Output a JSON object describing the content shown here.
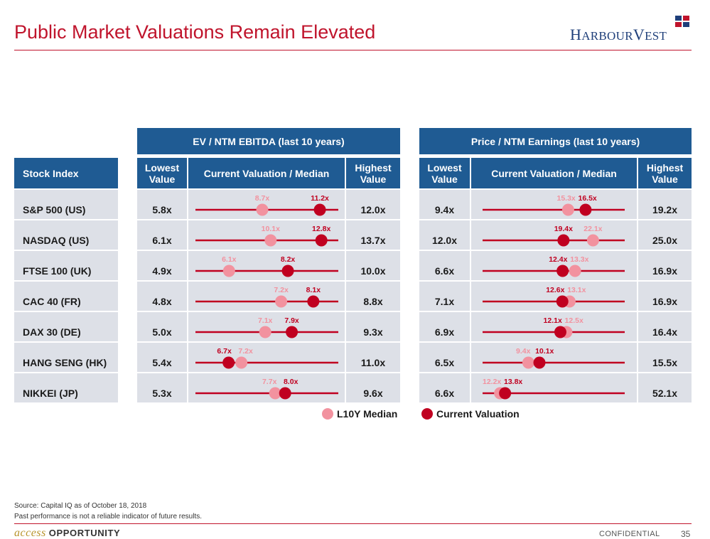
{
  "title": "Public Market Valuations Remain Elevated",
  "logo": {
    "text_big": "H",
    "text_small": "ARBOUR",
    "text_big2": "V",
    "text_small2": "EST"
  },
  "colors": {
    "header": "#1f5b93",
    "row_bg": "#dde0e7",
    "accent": "#c0142c",
    "median": "#f2929f",
    "current": "#c00020"
  },
  "groups": {
    "ev": "EV / NTM EBITDA (last 10 years)",
    "pe": "Price / NTM Earnings (last 10 years)"
  },
  "columns": {
    "stock_index": "Stock Index",
    "lowest": "Lowest Value",
    "current_median": "Current Valuation / Median",
    "highest": "Highest Value"
  },
  "chart_data": {
    "type": "range-dot",
    "series": [
      {
        "name": "L10Y Median",
        "color": "#f2929f"
      },
      {
        "name": "Current Valuation",
        "color": "#c00020"
      }
    ],
    "rows": [
      {
        "index": "S&P 500 (US)",
        "ev": {
          "low": "5.8x",
          "median": "8.7x",
          "current": "11.2x",
          "high": "12.0x",
          "m": 8.7,
          "c": 11.2
        },
        "pe": {
          "low": "9.4x",
          "median": "15.3x",
          "current": "16.5x",
          "high": "19.2x",
          "m": 15.3,
          "c": 16.5
        }
      },
      {
        "index": "NASDAQ (US)",
        "ev": {
          "low": "6.1x",
          "median": "10.1x",
          "current": "12.8x",
          "high": "13.7x",
          "m": 10.1,
          "c": 12.8
        },
        "pe": {
          "low": "12.0x",
          "median": "22.1x",
          "current": "19.4x",
          "high": "25.0x",
          "m": 22.1,
          "c": 19.4
        }
      },
      {
        "index": "FTSE 100 (UK)",
        "ev": {
          "low": "4.9x",
          "median": "6.1x",
          "current": "8.2x",
          "high": "10.0x",
          "m": 6.1,
          "c": 8.2
        },
        "pe": {
          "low": "6.6x",
          "median": "13.3x",
          "current": "12.4x",
          "high": "16.9x",
          "m": 13.3,
          "c": 12.4
        }
      },
      {
        "index": "CAC 40 (FR)",
        "ev": {
          "low": "4.8x",
          "median": "7.2x",
          "current": "8.1x",
          "high": "8.8x",
          "m": 7.2,
          "c": 8.1
        },
        "pe": {
          "low": "7.1x",
          "median": "13.1x",
          "current": "12.6x",
          "high": "16.9x",
          "m": 13.1,
          "c": 12.6
        }
      },
      {
        "index": "DAX 30 (DE)",
        "ev": {
          "low": "5.0x",
          "median": "7.1x",
          "current": "7.9x",
          "high": "9.3x",
          "m": 7.1,
          "c": 7.9
        },
        "pe": {
          "low": "6.9x",
          "median": "12.5x",
          "current": "12.1x",
          "high": "16.4x",
          "m": 12.5,
          "c": 12.1
        }
      },
      {
        "index": "HANG SENG (HK)",
        "ev": {
          "low": "5.4x",
          "median": "7.2x",
          "current": "6.7x",
          "high": "11.0x",
          "m": 7.2,
          "c": 6.7
        },
        "pe": {
          "low": "6.5x",
          "median": "9.4x",
          "current": "10.1x",
          "high": "15.5x",
          "m": 9.4,
          "c": 10.1
        }
      },
      {
        "index": "NIKKEI (JP)",
        "ev": {
          "low": "5.3x",
          "median": "7.7x",
          "current": "8.0x",
          "high": "9.6x",
          "m": 7.7,
          "c": 8.0
        },
        "pe": {
          "low": "6.6x",
          "median": "12.2x",
          "current": "13.8x",
          "high": "52.1x",
          "m": 12.2,
          "c": 13.8
        }
      }
    ]
  },
  "legend": {
    "median": "L10Y Median",
    "current": "Current Valuation"
  },
  "source": "Source: Capital IQ as of October 18, 2018",
  "disclaimer": "Past performance is not a reliable indicator of future results.",
  "brand": {
    "part1": "access",
    "part2": "OPPORTUNITY"
  },
  "confidential": "CONFIDENTIAL",
  "page_number": "35"
}
